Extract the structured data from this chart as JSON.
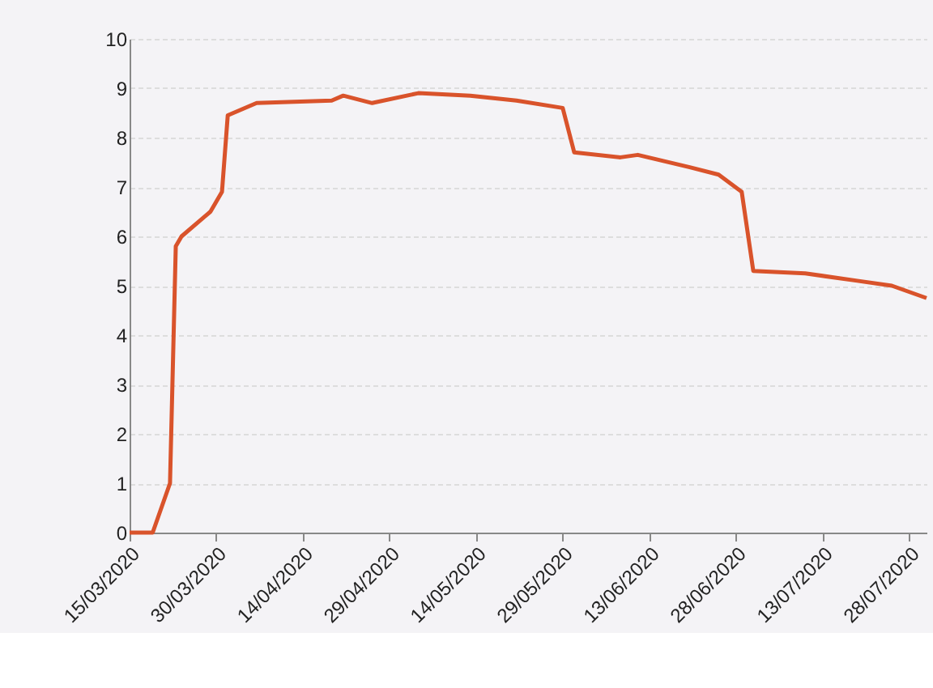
{
  "chart_data": {
    "type": "line",
    "x": [
      "2020-03-15",
      "2020-03-19",
      "2020-03-22",
      "2020-03-23",
      "2020-03-24",
      "2020-03-29",
      "2020-03-31",
      "2020-04-01",
      "2020-04-06",
      "2020-04-19",
      "2020-04-21",
      "2020-04-26",
      "2020-05-04",
      "2020-05-13",
      "2020-05-21",
      "2020-05-29",
      "2020-05-31",
      "2020-06-08",
      "2020-06-11",
      "2020-06-20",
      "2020-06-25",
      "2020-06-29",
      "2020-07-01",
      "2020-07-10",
      "2020-07-19",
      "2020-07-25",
      "2020-07-31"
    ],
    "series": [
      {
        "color": "#d9532b",
        "values": [
          0,
          0,
          1,
          5.8,
          6.0,
          6.5,
          6.9,
          8.45,
          8.7,
          8.75,
          8.85,
          8.7,
          8.9,
          8.85,
          8.75,
          8.6,
          7.7,
          7.6,
          7.65,
          7.4,
          7.25,
          6.9,
          5.3,
          5.25,
          5.1,
          5.0,
          4.75
        ]
      }
    ],
    "xlim": [
      "2020-03-15",
      "2020-07-31"
    ],
    "xticks": [
      {
        "value": "2020-03-15",
        "label": "15/03/2020"
      },
      {
        "value": "2020-03-30",
        "label": "30/03/2020"
      },
      {
        "value": "2020-04-14",
        "label": "14/04/2020"
      },
      {
        "value": "2020-04-29",
        "label": "29/04/2020"
      },
      {
        "value": "2020-05-14",
        "label": "14/05/2020"
      },
      {
        "value": "2020-05-29",
        "label": "29/05/2020"
      },
      {
        "value": "2020-06-13",
        "label": "13/06/2020"
      },
      {
        "value": "2020-06-28",
        "label": "28/06/2020"
      },
      {
        "value": "2020-07-13",
        "label": "13/07/2020"
      },
      {
        "value": "2020-07-28",
        "label": "28/07/2020"
      }
    ],
    "ylim": [
      0,
      10
    ],
    "yticks": [
      0,
      1,
      2,
      3,
      4,
      5,
      6,
      7,
      8,
      9,
      10
    ],
    "grid": "y",
    "line_style": "solid"
  }
}
